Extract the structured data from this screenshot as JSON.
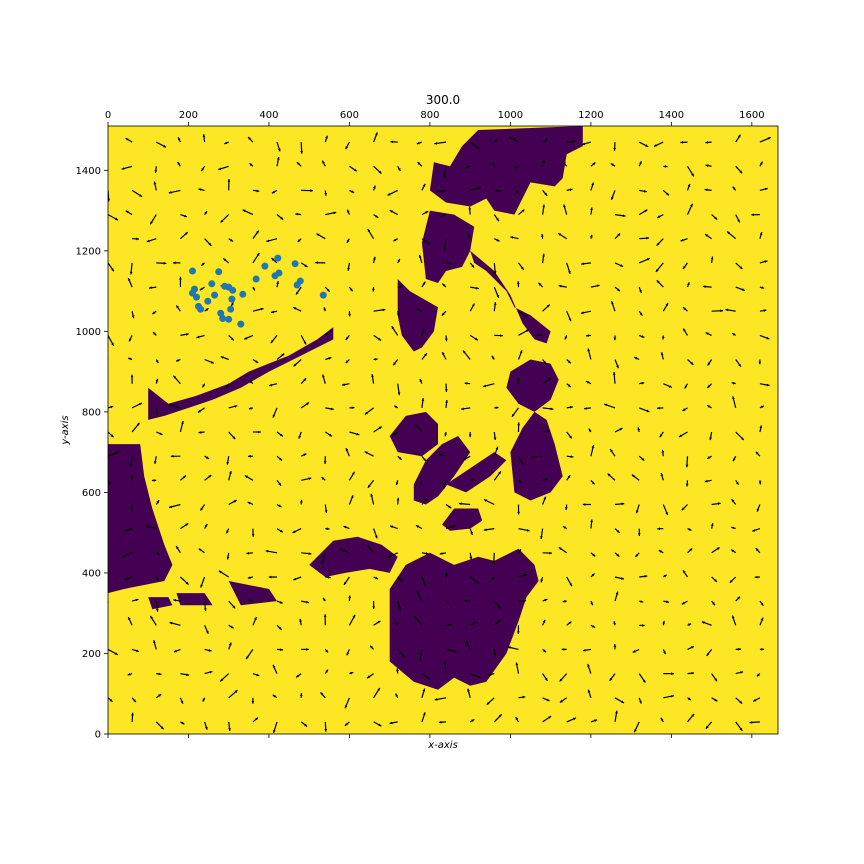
{
  "chart_data": {
    "type": "scatter",
    "title": "300.0",
    "xlabel": "x-axis",
    "ylabel": "y-axis",
    "xlim": [
      0,
      1665
    ],
    "ylim": [
      0,
      1510
    ],
    "x_ticks": [
      0,
      200,
      400,
      600,
      800,
      1000,
      1200,
      1400,
      1600
    ],
    "x_tick_labels": [
      "0",
      "200",
      "400",
      "600",
      "800",
      "1000",
      "1200",
      "1400",
      "1600"
    ],
    "y_ticks": [
      0,
      200,
      400,
      600,
      800,
      1000,
      1200,
      1400
    ],
    "y_tick_labels": [
      "0",
      "200",
      "400",
      "600",
      "800",
      "1000",
      "1200",
      "1400"
    ],
    "x_tick_labels_position": "top",
    "grid": false,
    "background": {
      "water_color": "#fde725",
      "land_color": "#440154"
    },
    "points_color": "#1f77b4",
    "points": [
      [
        210,
        1150
      ],
      [
        275,
        1148
      ],
      [
        215,
        1105
      ],
      [
        210,
        1095
      ],
      [
        220,
        1085
      ],
      [
        225,
        1062
      ],
      [
        230,
        1055
      ],
      [
        248,
        1075
      ],
      [
        258,
        1118
      ],
      [
        265,
        1090
      ],
      [
        290,
        1112
      ],
      [
        300,
        1110
      ],
      [
        310,
        1102
      ],
      [
        308,
        1080
      ],
      [
        305,
        1055
      ],
      [
        280,
        1045
      ],
      [
        285,
        1032
      ],
      [
        300,
        1030
      ],
      [
        335,
        1092
      ],
      [
        330,
        1018
      ],
      [
        368,
        1130
      ],
      [
        390,
        1162
      ],
      [
        415,
        1138
      ],
      [
        422,
        1182
      ],
      [
        425,
        1145
      ],
      [
        465,
        1168
      ],
      [
        470,
        1115
      ],
      [
        478,
        1125
      ],
      [
        535,
        1090
      ]
    ],
    "arrow_color": "#000000"
  }
}
